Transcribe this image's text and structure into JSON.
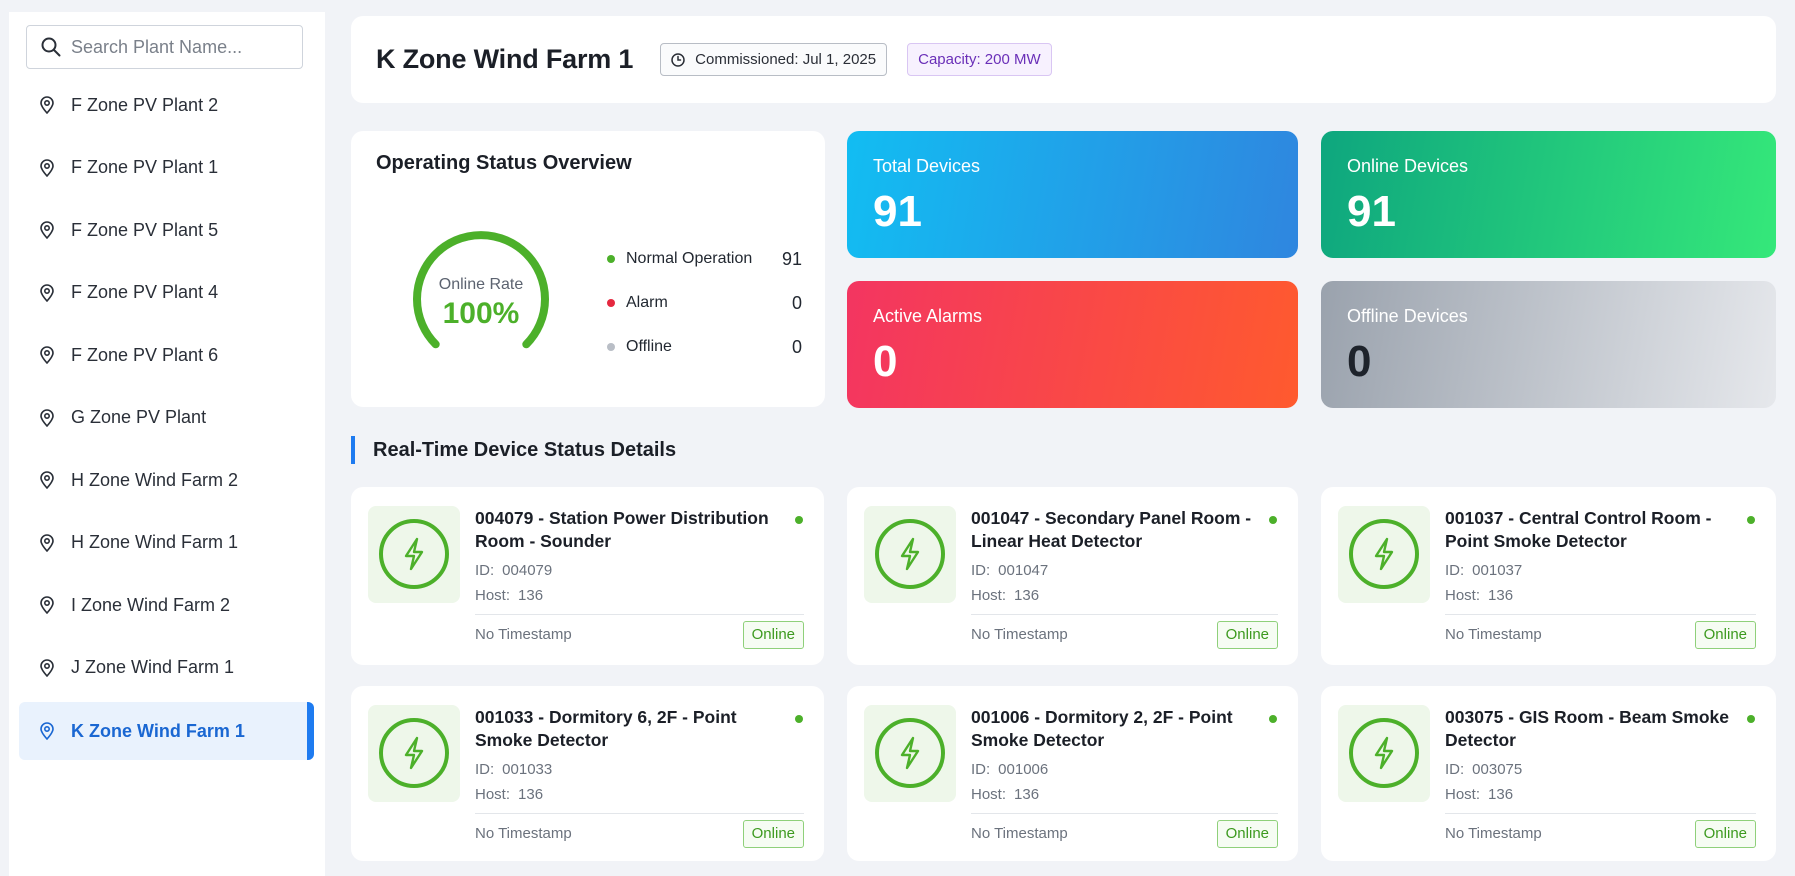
{
  "search": {
    "placeholder": "Search Plant Name..."
  },
  "sidebar": {
    "items": [
      {
        "label": "F Zone PV Plant 2"
      },
      {
        "label": "F Zone PV Plant 1"
      },
      {
        "label": "F Zone PV Plant 5"
      },
      {
        "label": "F Zone PV Plant 4"
      },
      {
        "label": "F Zone PV Plant 6"
      },
      {
        "label": "G Zone PV Plant"
      },
      {
        "label": "H Zone Wind Farm 2"
      },
      {
        "label": "H Zone Wind Farm 1"
      },
      {
        "label": "I Zone Wind Farm 2"
      },
      {
        "label": "J Zone Wind Farm 1"
      },
      {
        "label": "K Zone Wind Farm 1"
      }
    ],
    "active_label": "K Zone Wind Farm 1"
  },
  "header": {
    "title": "K Zone Wind Farm 1",
    "commissioned": "Commissioned: Jul 1, 2025",
    "capacity": "Capacity: 200 MW"
  },
  "overview": {
    "title": "Operating Status Overview",
    "gauge_label": "Online Rate",
    "gauge_value": "100%",
    "online_rate": 1.0,
    "legend": [
      {
        "label": "Normal Operation",
        "value": "91",
        "color": "#4cb02a"
      },
      {
        "label": "Alarm",
        "value": "0",
        "color": "#e5283f"
      },
      {
        "label": "Offline",
        "value": "0",
        "color": "#b9bec6"
      }
    ]
  },
  "stats": {
    "total": {
      "label": "Total Devices",
      "value": "91"
    },
    "online": {
      "label": "Online Devices",
      "value": "91"
    },
    "alarms": {
      "label": "Active Alarms",
      "value": "0"
    },
    "offline": {
      "label": "Offline Devices",
      "value": "0"
    }
  },
  "section": {
    "title": "Real-Time Device Status Details"
  },
  "device_labels": {
    "id": "ID:",
    "host": "Host:"
  },
  "devices": [
    {
      "name": "004079 - Station Power Distribution Room - Sounder",
      "id": "004079",
      "host": "136",
      "timestamp": "No Timestamp",
      "status": "Online"
    },
    {
      "name": "001047 - Secondary Panel Room - Linear Heat Detector",
      "id": "001047",
      "host": "136",
      "timestamp": "No Timestamp",
      "status": "Online"
    },
    {
      "name": "001037 - Central Control Room - Point Smoke Detector",
      "id": "001037",
      "host": "136",
      "timestamp": "No Timestamp",
      "status": "Online"
    },
    {
      "name": "001033 - Dormitory 6, 2F - Point Smoke Detector",
      "id": "001033",
      "host": "136",
      "timestamp": "No Timestamp",
      "status": "Online"
    },
    {
      "name": "001006 - Dormitory 2, 2F - Point Smoke Detector",
      "id": "001006",
      "host": "136",
      "timestamp": "No Timestamp",
      "status": "Online"
    },
    {
      "name": "003075 - GIS Room - Beam Smoke Detector",
      "id": "003075",
      "host": "136",
      "timestamp": "No Timestamp",
      "status": "Online"
    }
  ],
  "colors": {
    "accent": "#1e7bf0",
    "online_green": "#4cb02a",
    "alarm_red": "#f33561"
  },
  "icons": {
    "search": "search-icon",
    "plant": "location-pin-icon",
    "clock": "clock-icon",
    "device": "lightning-bolt-icon"
  }
}
